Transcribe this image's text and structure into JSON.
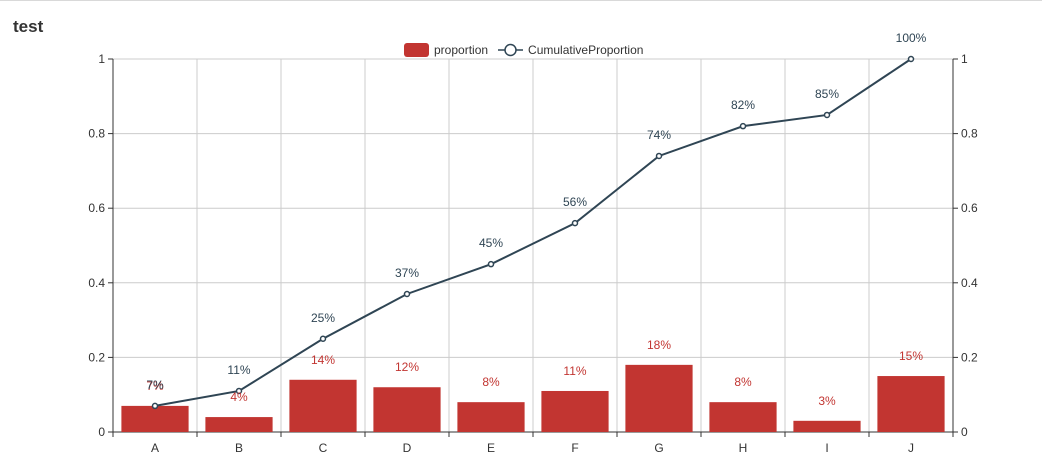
{
  "chart_data": {
    "type": "bar",
    "title": "test",
    "categories": [
      "A",
      "B",
      "C",
      "D",
      "E",
      "F",
      "G",
      "H",
      "I",
      "J"
    ],
    "series": [
      {
        "name": "proportion",
        "type": "bar",
        "values": [
          0.07,
          0.04,
          0.14,
          0.12,
          0.08,
          0.11,
          0.18,
          0.08,
          0.03,
          0.15
        ],
        "labels": [
          "7%",
          "4%",
          "14%",
          "12%",
          "8%",
          "11%",
          "18%",
          "8%",
          "3%",
          "15%"
        ]
      },
      {
        "name": "CumulativeProportion",
        "type": "line",
        "values": [
          0.07,
          0.11,
          0.25,
          0.37,
          0.45,
          0.56,
          0.74,
          0.82,
          0.85,
          1.0
        ],
        "labels": [
          "7%",
          "11%",
          "25%",
          "37%",
          "45%",
          "56%",
          "74%",
          "82%",
          "85%",
          "100%"
        ]
      }
    ],
    "ylim": [
      0,
      1
    ],
    "ylim_right": [
      0,
      1
    ],
    "yticks": [
      "0",
      "0.2",
      "0.4",
      "0.6",
      "0.8",
      "1"
    ],
    "ytick_values": [
      0,
      0.2,
      0.4,
      0.6,
      0.8,
      1
    ],
    "grid": true,
    "legend": "top-center",
    "colors": {
      "bar": "#c23531",
      "line": "#2f4554",
      "grid": "#cccccc",
      "axis": "#333333",
      "text": "#333333"
    }
  }
}
